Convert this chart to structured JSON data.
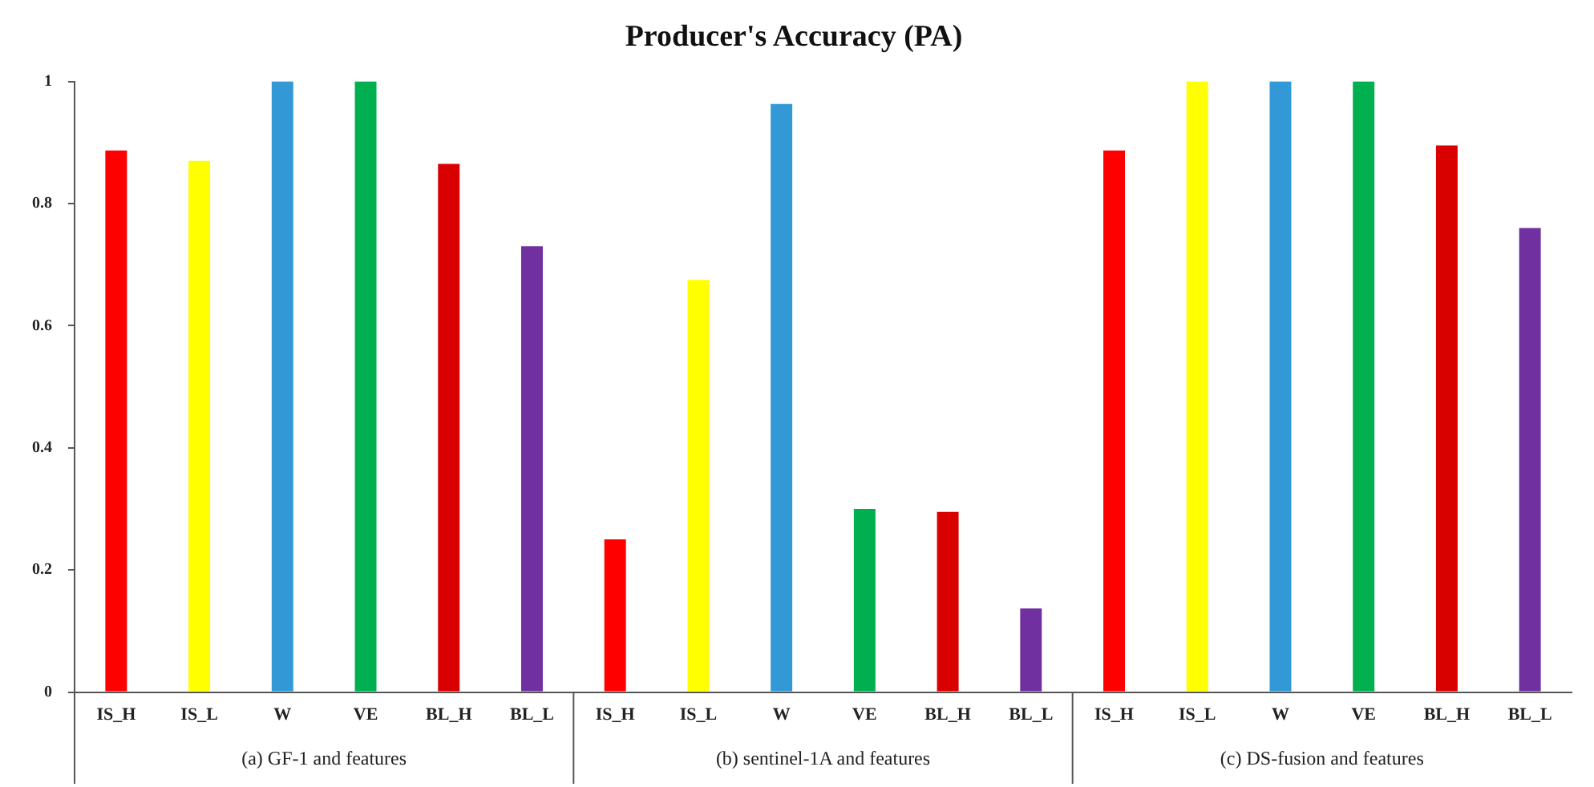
{
  "chart_data": {
    "type": "bar",
    "title": "Producer's Accuracy (PA)",
    "categories": [
      "IS_H",
      "IS_L",
      "W",
      "VE",
      "BL_H",
      "BL_L",
      "IS_H",
      "IS_L",
      "W",
      "VE",
      "BL_H",
      "BL_L",
      "IS_H",
      "IS_L",
      "W",
      "VE",
      "BL_H",
      "BL_L"
    ],
    "values": [
      0.887,
      0.87,
      1,
      1,
      0.865,
      0.73,
      0.25,
      0.675,
      0.963,
      0.3,
      0.295,
      0.137,
      0.887,
      1,
      1,
      1,
      0.895,
      0.76
    ],
    "colors": [
      "#ff0000",
      "#ffff00",
      "#3399d6",
      "#00b050",
      "#d90000",
      "#7030a0",
      "#ff0000",
      "#ffff00",
      "#3399d6",
      "#00b050",
      "#d90000",
      "#7030a0",
      "#ff0000",
      "#ffff00",
      "#3399d6",
      "#00b050",
      "#d90000",
      "#7030a0"
    ],
    "ylim": [
      0,
      1
    ],
    "yticks": [
      0,
      0.2,
      0.4,
      0.6,
      0.8,
      1
    ],
    "grid": false,
    "legend": false,
    "annotations": [
      "(a) GF-1 and features",
      "(b) sentinel-1A and features",
      "(c) DS-fusion and features"
    ]
  }
}
